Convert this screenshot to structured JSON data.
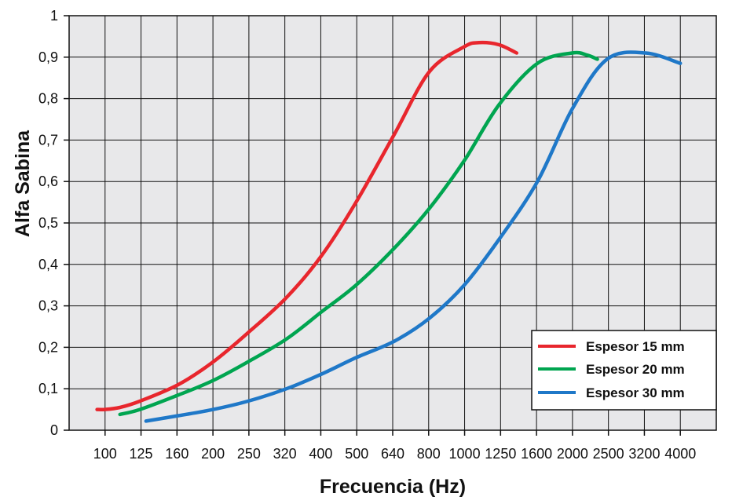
{
  "chart_data": {
    "type": "line",
    "title": "",
    "xlabel": "Frecuencia (Hz)",
    "ylabel": "Alfa Sabina",
    "x_scale": "log",
    "categories": [
      "100",
      "125",
      "160",
      "200",
      "250",
      "320",
      "400",
      "500",
      "640",
      "800",
      "1000",
      "1250",
      "1600",
      "2000",
      "2500",
      "3200",
      "4000"
    ],
    "y_ticks": [
      "0",
      "0,1",
      "0,2",
      "0,3",
      "0,4",
      "0,5",
      "0,6",
      "0,7",
      "0,8",
      "0,9",
      "1"
    ],
    "ylim": [
      0,
      1
    ],
    "grid": true,
    "plot_background": "#e8e8ea",
    "legend_position": "bottom-right",
    "series": [
      {
        "name": "Espesor 15 mm",
        "color": "#e8262d",
        "points": [
          [
            95,
            0.05
          ],
          [
            100,
            0.05
          ],
          [
            110,
            0.055
          ],
          [
            125,
            0.07
          ],
          [
            160,
            0.11
          ],
          [
            200,
            0.165
          ],
          [
            250,
            0.235
          ],
          [
            320,
            0.32
          ],
          [
            400,
            0.42
          ],
          [
            500,
            0.55
          ],
          [
            640,
            0.715
          ],
          [
            800,
            0.865
          ],
          [
            1000,
            0.925
          ],
          [
            1100,
            0.935
          ],
          [
            1250,
            0.93
          ],
          [
            1400,
            0.91
          ]
        ]
      },
      {
        "name": "Espesor 20 mm",
        "color": "#00a550",
        "points": [
          [
            110,
            0.038
          ],
          [
            125,
            0.05
          ],
          [
            160,
            0.085
          ],
          [
            200,
            0.12
          ],
          [
            250,
            0.165
          ],
          [
            320,
            0.22
          ],
          [
            400,
            0.285
          ],
          [
            500,
            0.35
          ],
          [
            640,
            0.44
          ],
          [
            800,
            0.535
          ],
          [
            1000,
            0.65
          ],
          [
            1250,
            0.785
          ],
          [
            1600,
            0.885
          ],
          [
            2000,
            0.91
          ],
          [
            2200,
            0.905
          ],
          [
            2350,
            0.895
          ]
        ]
      },
      {
        "name": "Espesor 30 mm",
        "color": "#1f78c8",
        "points": [
          [
            130,
            0.022
          ],
          [
            160,
            0.035
          ],
          [
            200,
            0.05
          ],
          [
            250,
            0.07
          ],
          [
            320,
            0.1
          ],
          [
            400,
            0.135
          ],
          [
            500,
            0.175
          ],
          [
            640,
            0.215
          ],
          [
            800,
            0.27
          ],
          [
            1000,
            0.35
          ],
          [
            1250,
            0.46
          ],
          [
            1600,
            0.6
          ],
          [
            2000,
            0.775
          ],
          [
            2500,
            0.895
          ],
          [
            3200,
            0.91
          ],
          [
            4000,
            0.885
          ]
        ]
      }
    ]
  }
}
